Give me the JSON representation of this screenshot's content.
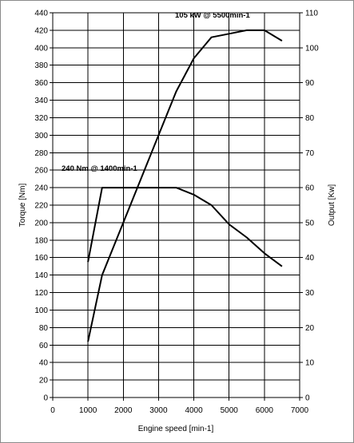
{
  "chart_data": {
    "type": "line",
    "title": "",
    "xlabel": "Engine speed [min-1]",
    "ylabel": "Torque [Nm]",
    "y2label": "Output [Kw]",
    "xlim": [
      0,
      7000
    ],
    "ylim": [
      0,
      440
    ],
    "y2lim": [
      0,
      110
    ],
    "x_ticks": [
      0,
      1000,
      2000,
      3000,
      4000,
      5000,
      6000,
      7000
    ],
    "y_ticks": [
      0,
      20,
      40,
      60,
      80,
      100,
      120,
      140,
      160,
      180,
      200,
      220,
      240,
      260,
      280,
      300,
      320,
      340,
      360,
      380,
      400,
      420,
      440
    ],
    "y2_ticks": [
      0,
      10,
      20,
      30,
      40,
      50,
      60,
      70,
      80,
      90,
      100,
      110
    ],
    "grid": true,
    "legend": "none",
    "series": [
      {
        "axis": "left",
        "color": "#000000",
        "x": [
          1000,
          1400,
          1500,
          3000,
          3500,
          4000,
          4500,
          5000,
          5500,
          6000,
          6500
        ],
        "y": [
          155,
          240,
          240,
          240,
          240,
          232,
          220,
          198,
          183,
          165,
          150
        ]
      },
      {
        "axis": "right",
        "color": "#000000",
        "x": [
          1000,
          1400,
          2000,
          3000,
          3500,
          4000,
          4500,
          5000,
          5500,
          6000,
          6500
        ],
        "y": [
          16,
          35,
          50,
          75,
          87.5,
          97,
          103,
          104,
          105,
          105,
          102
        ]
      }
    ],
    "annotations": [
      {
        "text": "105 kW @ 5500min-1",
        "x": 4100,
        "y": 110
      },
      {
        "text": "240 Nm @ 1400min-1",
        "x": 250,
        "y": 62.5
      }
    ]
  }
}
